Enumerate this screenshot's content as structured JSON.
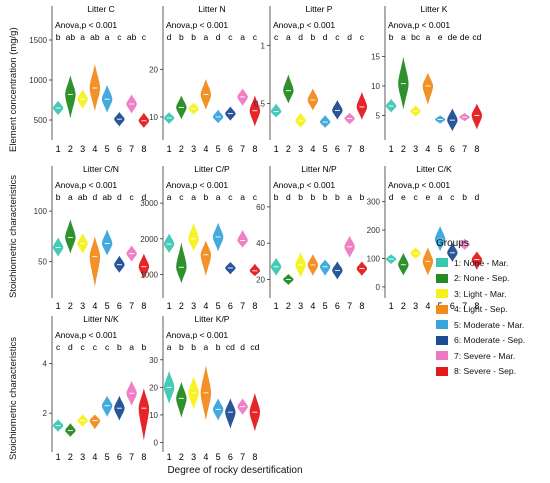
{
  "figure": {
    "xlabel": "Degree of rocky desertification",
    "row_labels": [
      "Element concentration (mg/g)",
      "Stoichiometric characteristics",
      "Stoichiometric characteristics"
    ]
  },
  "legend": {
    "title": "Groups",
    "items": [
      {
        "label": "1: None - Mar.",
        "color": "#3cc7b4"
      },
      {
        "label": "2: None - Sep.",
        "color": "#238b22"
      },
      {
        "label": "3: Light - Mar.",
        "color": "#f4f219"
      },
      {
        "label": "4: Light - Sep.",
        "color": "#f28a1c"
      },
      {
        "label": "5: Moderate - Mar.",
        "color": "#3aa5dc"
      },
      {
        "label": "6: Moderate - Sep.",
        "color": "#1d4c94"
      },
      {
        "label": "7: Severe - Mar.",
        "color": "#ee78c4"
      },
      {
        "label": "8: Severe - Sep.",
        "color": "#e4191c"
      }
    ]
  },
  "chart_data": [
    {
      "type": "violin",
      "title": "Litter C",
      "annotation": "Anova,p < 0.001",
      "categories": [
        "1",
        "2",
        "3",
        "4",
        "5",
        "6",
        "7",
        "8"
      ],
      "letters": [
        "b",
        "ab",
        "a",
        "ab",
        "a",
        "c",
        "ab",
        "c"
      ],
      "values": [
        650,
        820,
        760,
        900,
        760,
        510,
        700,
        490
      ],
      "ranges": [
        [
          560,
          740
        ],
        [
          520,
          1060
        ],
        [
          640,
          880
        ],
        [
          610,
          1200
        ],
        [
          590,
          940
        ],
        [
          420,
          600
        ],
        [
          580,
          820
        ],
        [
          400,
          590
        ]
      ],
      "yticks": [
        500,
        1000,
        1500
      ],
      "ylim": [
        300,
        1550
      ]
    },
    {
      "type": "violin",
      "title": "Litter N",
      "annotation": "Anova,p < 0.001",
      "categories": [
        "1",
        "2",
        "3",
        "4",
        "5",
        "6",
        "7",
        "8"
      ],
      "letters": [
        "d",
        "b",
        "b",
        "a",
        "d",
        "c",
        "a",
        "c"
      ],
      "values": [
        9.8,
        12.0,
        11.7,
        14.7,
        10.0,
        10.7,
        14.2,
        11.3
      ],
      "ranges": [
        [
          8.5,
          11.0
        ],
        [
          9.5,
          14.5
        ],
        [
          10.5,
          13.0
        ],
        [
          11.5,
          18.0
        ],
        [
          8.7,
          11.5
        ],
        [
          9.2,
          12.2
        ],
        [
          12.3,
          16.0
        ],
        [
          8.0,
          14.5
        ]
      ],
      "yticks": [
        10,
        20
      ],
      "ylim": [
        6,
        27
      ]
    },
    {
      "type": "violin",
      "title": "Litter P",
      "annotation": "Anova,p < 0.001",
      "categories": [
        "1",
        "2",
        "3",
        "4",
        "5",
        "6",
        "7",
        "8"
      ],
      "letters": [
        "c",
        "a",
        "d",
        "b",
        "d",
        "c",
        "d",
        "c"
      ],
      "values": [
        0.43,
        0.61,
        0.35,
        0.53,
        0.34,
        0.44,
        0.37,
        0.47
      ],
      "ranges": [
        [
          0.38,
          0.5
        ],
        [
          0.5,
          0.75
        ],
        [
          0.29,
          0.42
        ],
        [
          0.44,
          0.63
        ],
        [
          0.29,
          0.4
        ],
        [
          0.36,
          0.53
        ],
        [
          0.32,
          0.42
        ],
        [
          0.36,
          0.6
        ]
      ],
      "yticks": [
        0.5,
        1.0
      ],
      "ylim": [
        0.22,
        1.08
      ]
    },
    {
      "type": "violin",
      "title": "Litter K",
      "annotation": "Anova,p < 0.001",
      "categories": [
        "1",
        "2",
        "3",
        "4",
        "5",
        "6",
        "7",
        "8"
      ],
      "letters": [
        "b",
        "a",
        "bc",
        "a",
        "e",
        "de",
        "de",
        "cd"
      ],
      "values": [
        6.6,
        10.4,
        5.7,
        10.0,
        4.3,
        4.2,
        4.7,
        5.0
      ],
      "ranges": [
        [
          5.5,
          7.8
        ],
        [
          6.0,
          15.0
        ],
        [
          4.8,
          6.7
        ],
        [
          6.8,
          12.3
        ],
        [
          3.6,
          5.0
        ],
        [
          2.3,
          6.2
        ],
        [
          4.0,
          5.4
        ],
        [
          2.6,
          7.0
        ]
      ],
      "yticks": [
        5,
        10,
        15
      ],
      "ylim": [
        1.5,
        18.5
      ]
    },
    {
      "type": "violin",
      "title": "Litter C/N",
      "annotation": "Anova,p < 0.001",
      "categories": [
        "1",
        "2",
        "3",
        "4",
        "5",
        "6",
        "7",
        "8"
      ],
      "letters": [
        "b",
        "a",
        "ab",
        "d",
        "ab",
        "d",
        "c",
        "d"
      ],
      "values": [
        64,
        74,
        68,
        55,
        68,
        47,
        58,
        45
      ],
      "ranges": [
        [
          55,
          74
        ],
        [
          58,
          92
        ],
        [
          58,
          78
        ],
        [
          25,
          75
        ],
        [
          56,
          82
        ],
        [
          39,
          56
        ],
        [
          50,
          66
        ],
        [
          33,
          58
        ]
      ],
      "yticks": [
        50,
        100
      ],
      "ylim": [
        18,
        115
      ]
    },
    {
      "type": "violin",
      "title": "Litter C/P",
      "annotation": "Anova,p < 0.001",
      "categories": [
        "1",
        "2",
        "3",
        "4",
        "5",
        "6",
        "7",
        "8"
      ],
      "letters": [
        "a",
        "c",
        "a",
        "b",
        "a",
        "c",
        "a",
        "c"
      ],
      "values": [
        1850,
        1200,
        2000,
        1550,
        2050,
        1180,
        1950,
        1100
      ],
      "ranges": [
        [
          1600,
          2150
        ],
        [
          750,
          1900
        ],
        [
          1650,
          2450
        ],
        [
          950,
          1950
        ],
        [
          1650,
          2450
        ],
        [
          1000,
          1350
        ],
        [
          1750,
          2250
        ],
        [
          950,
          1300
        ]
      ],
      "yticks": [
        1000,
        2000,
        3000
      ],
      "ylim": [
        450,
        3200
      ]
    },
    {
      "type": "violin",
      "title": "Litter N/P",
      "annotation": "Anova,p < 0.001",
      "categories": [
        "1",
        "2",
        "3",
        "4",
        "5",
        "6",
        "7",
        "8"
      ],
      "letters": [
        "b",
        "d",
        "b",
        "b",
        "b",
        "b",
        "a",
        "b"
      ],
      "values": [
        27,
        20,
        28,
        28,
        27,
        25,
        38,
        26
      ],
      "ranges": [
        [
          22,
          32
        ],
        [
          17,
          23
        ],
        [
          21,
          35
        ],
        [
          22,
          34
        ],
        [
          22,
          31
        ],
        [
          20,
          30
        ],
        [
          32,
          44
        ],
        [
          22,
          30
        ]
      ],
      "yticks": [
        20,
        40,
        60
      ],
      "ylim": [
        12,
        66
      ]
    },
    {
      "type": "violin",
      "title": "Litter C/K",
      "annotation": "Anova,p < 0.001",
      "categories": [
        "1",
        "2",
        "3",
        "4",
        "5",
        "6",
        "7",
        "8"
      ],
      "letters": [
        "d",
        "e",
        "c",
        "e",
        "a",
        "c",
        "b",
        "d"
      ],
      "values": [
        98,
        78,
        118,
        90,
        168,
        120,
        150,
        96
      ],
      "ranges": [
        [
          80,
          115
        ],
        [
          40,
          120
        ],
        [
          98,
          140
        ],
        [
          40,
          140
        ],
        [
          125,
          215
        ],
        [
          88,
          155
        ],
        [
          130,
          170
        ],
        [
          60,
          125
        ]
      ],
      "yticks": [
        0,
        100,
        200,
        300
      ],
      "ylim": [
        -25,
        320
      ]
    },
    {
      "type": "violin",
      "title": "Litter N/K",
      "annotation": "Anova,p < 0.001",
      "categories": [
        "1",
        "2",
        "3",
        "4",
        "5",
        "6",
        "7",
        "8"
      ],
      "letters": [
        "c",
        "d",
        "c",
        "c",
        "c",
        "b",
        "a",
        "b"
      ],
      "values": [
        1.5,
        1.3,
        1.7,
        1.7,
        2.3,
        2.2,
        2.8,
        2.2
      ],
      "ranges": [
        [
          1.25,
          1.75
        ],
        [
          1.05,
          1.6
        ],
        [
          1.45,
          1.95
        ],
        [
          1.35,
          1.95
        ],
        [
          1.85,
          2.7
        ],
        [
          1.7,
          2.7
        ],
        [
          2.3,
          3.3
        ],
        [
          0.9,
          3.0
        ]
      ],
      "yticks": [
        2,
        4
      ],
      "ylim": [
        0.6,
        4.7
      ]
    },
    {
      "type": "violin",
      "title": "Litter K/P",
      "annotation": "Anova,p < 0.001",
      "categories": [
        "1",
        "2",
        "3",
        "4",
        "5",
        "6",
        "7",
        "8"
      ],
      "letters": [
        "a",
        "b",
        "b",
        "a",
        "b",
        "cd",
        "d",
        "cd"
      ],
      "values": [
        20,
        16,
        18,
        18,
        12,
        11,
        13,
        11
      ],
      "ranges": [
        [
          14,
          26
        ],
        [
          9,
          22
        ],
        [
          12,
          24
        ],
        [
          8,
          28
        ],
        [
          8,
          16
        ],
        [
          5,
          16
        ],
        [
          10,
          16
        ],
        [
          4,
          18
        ]
      ],
      "yticks": [
        0,
        10,
        20,
        30
      ],
      "ylim": [
        -2,
        35
      ]
    }
  ]
}
